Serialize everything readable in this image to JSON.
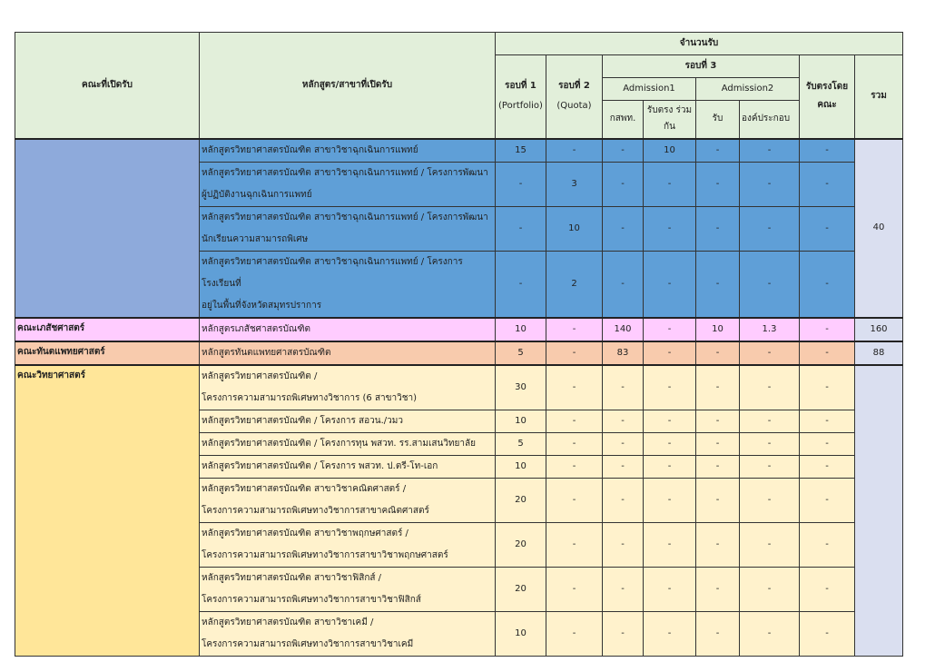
{
  "header": {
    "faculty": "คณะที่เปิดรับ",
    "program": "หลักสูตร/สาขาที่เปิดรับ",
    "intake": "จำนวนรับ",
    "round1": "รอบที่ 1",
    "round1_sub": "(Portfolio)",
    "round2": "รอบที่ 2",
    "round2_sub": "(Quota)",
    "round3": "รอบที่ 3",
    "admission1": "Admission1",
    "admission2": "Admission2",
    "direct_faculty": "รับตรงโดย คณะ",
    "total": "รวม",
    "a1_kspt": "กสพท.",
    "a1_joint": "รับตรง ร่วมกัน",
    "a2_receive": "รับ",
    "a2_component": "องค์ประกอบ"
  },
  "colors": {
    "header": "#e2efda",
    "group1_faculty": "#8eaadb",
    "group1_rows": "#5f9fd7",
    "total_cell": "#dadff0",
    "pharmacy": "#ffccff",
    "dentistry": "#f8cbad",
    "science_faculty": "#ffe699",
    "science_rows": "#fff2cc"
  },
  "groups": [
    {
      "faculty": "",
      "total": "40",
      "faculty_color": "#8eaadb",
      "row_color": "#5f9fd7",
      "rows": [
        {
          "program": [
            "หลักสูตรวิทยาศาสตรบัณฑิต สาขาวิชาฉุกเฉินการแพทย์"
          ],
          "values": [
            "15",
            "-",
            "-",
            "10",
            "-",
            "-",
            "-"
          ]
        },
        {
          "program": [
            "หลักสูตรวิทยาศาสตรบัณฑิต สาขาวิชาฉุกเฉินการแพทย์ / โครงการพัฒนา",
            "ผู้ปฏิบัติงานฉุกเฉินการแพทย์"
          ],
          "values": [
            "-",
            "3",
            "-",
            "-",
            "-",
            "-",
            "-"
          ]
        },
        {
          "program": [
            "หลักสูตรวิทยาศาสตรบัณฑิต สาขาวิชาฉุกเฉินการแพทย์ / โครงการพัฒนา",
            "นักเรียนความสามารถพิเศษ"
          ],
          "values": [
            "-",
            "10",
            "-",
            "-",
            "-",
            "-",
            "-"
          ]
        },
        {
          "program": [
            "หลักสูตรวิทยาศาสตรบัณฑิต สาขาวิชาฉุกเฉินการแพทย์ / โครงการโรงเรียนที่",
            "อยู่ในพื้นที่จังหวัดสมุทรปราการ"
          ],
          "values": [
            "-",
            "2",
            "-",
            "-",
            "-",
            "-",
            "-"
          ]
        }
      ]
    },
    {
      "faculty": "คณะเภสัชศาสตร์",
      "total": "160",
      "faculty_color": "#ffccff",
      "row_color": "#ffccff",
      "rows": [
        {
          "program": [
            "หลักสูตรเภสัชศาสตรบัณฑิต"
          ],
          "values": [
            "10",
            "-",
            "140",
            "-",
            "10",
            "1.3",
            "-"
          ]
        }
      ]
    },
    {
      "faculty": "คณะทันตแพทยศาสตร์",
      "total": "88",
      "faculty_color": "#f8cbad",
      "row_color": "#f8cbad",
      "rows": [
        {
          "program": [
            "หลักสูตรทันตแพทยศาสตรบัณฑิต"
          ],
          "values": [
            "5",
            "-",
            "83",
            "-",
            "-",
            "-",
            "-"
          ]
        }
      ]
    },
    {
      "faculty": "คณะวิทยาศาสตร์",
      "total": "",
      "faculty_color": "#ffe699",
      "row_color": "#fff2cc",
      "rows": [
        {
          "program": [
            "หลักสูตรวิทยาศาสตรบัณฑิต /",
            " โครงการความสามารถพิเศษทางวิชาการ (6 สาขาวิชา)"
          ],
          "values": [
            "30",
            "-",
            "-",
            "-",
            "-",
            "-",
            "-"
          ]
        },
        {
          "program": [
            "หลักสูตรวิทยาศาสตรบัณฑิต / โครงการ สอวน./วมว"
          ],
          "values": [
            "10",
            "-",
            "-",
            "-",
            "-",
            "-",
            "-"
          ]
        },
        {
          "program": [
            "หลักสูตรวิทยาศาสตรบัณฑิต  / โครงการทุน พสวท. รร.สามเสนวิทยาลัย"
          ],
          "values": [
            "5",
            "-",
            "-",
            "-",
            "-",
            "-",
            "-"
          ]
        },
        {
          "program": [
            "หลักสูตรวิทยาศาสตรบัณฑิต / โครงการ พสวท. ป.ตรี-โท-เอก"
          ],
          "values": [
            "10",
            "-",
            "-",
            "-",
            "-",
            "-",
            "-"
          ]
        },
        {
          "program": [
            "หลักสูตรวิทยาศาสตรบัณฑิต สาขาวิชาคณิตศาสตร์ /",
            "โครงการความสามารถพิเศษทางวิชาการสาขาคณิตศาสตร์"
          ],
          "values": [
            "20",
            "-",
            "-",
            "-",
            "-",
            "-",
            "-"
          ]
        },
        {
          "program": [
            "หลักสูตรวิทยาศาสตรบัณฑิต สาขาวิชาพฤกษศาสตร์ /",
            "โครงการความสามารถพิเศษทางวิชาการสาขาวิชาพฤกษศาสตร์"
          ],
          "values": [
            "20",
            "-",
            "-",
            "-",
            "-",
            "-",
            "-"
          ]
        },
        {
          "program": [
            "หลักสูตรวิทยาศาสตรบัณฑิต สาขาวิชาฟิสิกส์ /",
            "โครงการความสามารถพิเศษทางวิชาการสาขาวิชาฟิสิกส์"
          ],
          "values": [
            "20",
            "-",
            "-",
            "-",
            "-",
            "-",
            "-"
          ]
        },
        {
          "program": [
            "หลักสูตรวิทยาศาสตรบัณฑิต สาขาวิชาเคมี /",
            "โครงการความสามารถพิเศษทางวิชาการสาขาวิชาเคมี"
          ],
          "values": [
            "10",
            "-",
            "-",
            "-",
            "-",
            "-",
            "-"
          ]
        }
      ]
    }
  ]
}
